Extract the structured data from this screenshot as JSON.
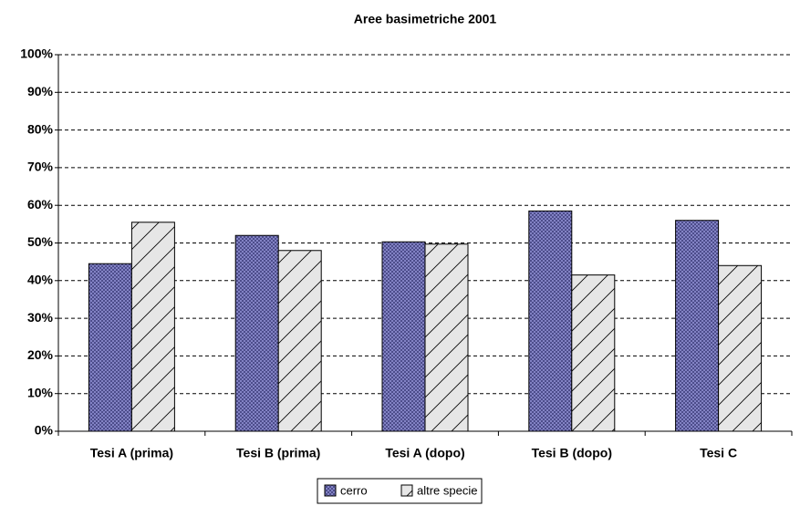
{
  "chart_data": {
    "type": "bar",
    "title": "Aree basimetriche 2001",
    "categories": [
      "Tesi A (prima)",
      "Tesi B (prima)",
      "Tesi A (dopo)",
      "Tesi B (dopo)",
      "Tesi C"
    ],
    "series": [
      {
        "name": "cerro",
        "color": "#8a8acc",
        "pattern": "crosshatch",
        "values": [
          44.5,
          52,
          50.3,
          58.5,
          56
        ]
      },
      {
        "name": "altre specie",
        "color": "#e6e6e6",
        "pattern": "diagonal",
        "values": [
          55.5,
          48,
          49.7,
          41.5,
          44
        ]
      }
    ],
    "ylim": [
      0,
      100
    ],
    "yticks": [
      {
        "value": 0,
        "label": "0%"
      },
      {
        "value": 10,
        "label": "10%"
      },
      {
        "value": 20,
        "label": "20%"
      },
      {
        "value": 30,
        "label": "30%"
      },
      {
        "value": 40,
        "label": "40%"
      },
      {
        "value": 50,
        "label": "50%"
      },
      {
        "value": 60,
        "label": "60%"
      },
      {
        "value": 70,
        "label": "70%"
      },
      {
        "value": 80,
        "label": "80%"
      },
      {
        "value": 90,
        "label": "90%"
      },
      {
        "value": 100,
        "label": "100%"
      }
    ],
    "grid": true
  }
}
